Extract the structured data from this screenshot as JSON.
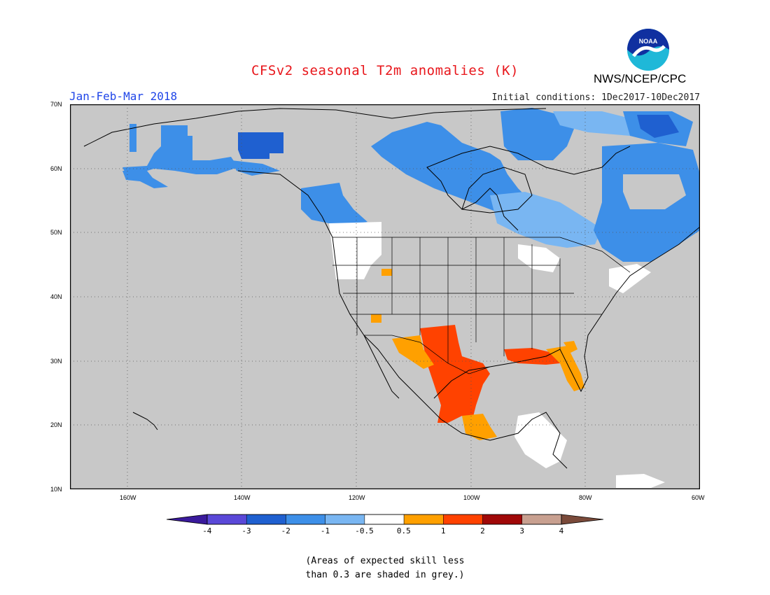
{
  "agency": "NWS/NCEP/CPC",
  "logo_text": "NOAA",
  "title": "CFSv2 seasonal T2m anomalies (K)",
  "season": "Jan-Feb-Mar 2018",
  "initial_conditions": "Initial conditions: 1Dec2017-10Dec2017",
  "map": {
    "lat_labels": [
      "70N",
      "60N",
      "50N",
      "40N",
      "30N",
      "20N",
      "10N"
    ],
    "lon_labels": [
      "160W",
      "140W",
      "120W",
      "100W",
      "80W",
      "60W"
    ],
    "lat_range": [
      10,
      70
    ],
    "lon_range": [
      -171,
      -60
    ],
    "colors": {
      "ocean": "#c8c8c8",
      "grey_skill": "#c8c8c8",
      "white": "#ffffff",
      "coast": "#000000"
    }
  },
  "colorbar": {
    "labels": [
      "-4",
      "-3",
      "-2",
      "-1",
      "-0.5",
      "0.5",
      "1",
      "2",
      "3",
      "4"
    ],
    "colors": [
      "#3a1a9c",
      "#5a48d8",
      "#1f60d0",
      "#3d8fe8",
      "#79b6f2",
      "#ffffff",
      "#ffa000",
      "#ff4200",
      "#a00808",
      "#c8a090",
      "#7a4a3a"
    ]
  },
  "note": {
    "line1": "(Areas of expected skill less",
    "line2": "than 0.3 are shaded in grey.)"
  }
}
